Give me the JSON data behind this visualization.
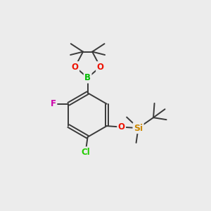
{
  "bg_color": "#ececec",
  "bond_color": "#3a3a3a",
  "bond_width": 1.4,
  "atom_colors": {
    "B": "#00bb00",
    "O": "#ee1100",
    "F": "#cc00aa",
    "Cl": "#22cc00",
    "Si": "#cc8800",
    "C": "#3a3a3a"
  },
  "font_size_atom": 8.5,
  "font_size_sub": 7.0
}
